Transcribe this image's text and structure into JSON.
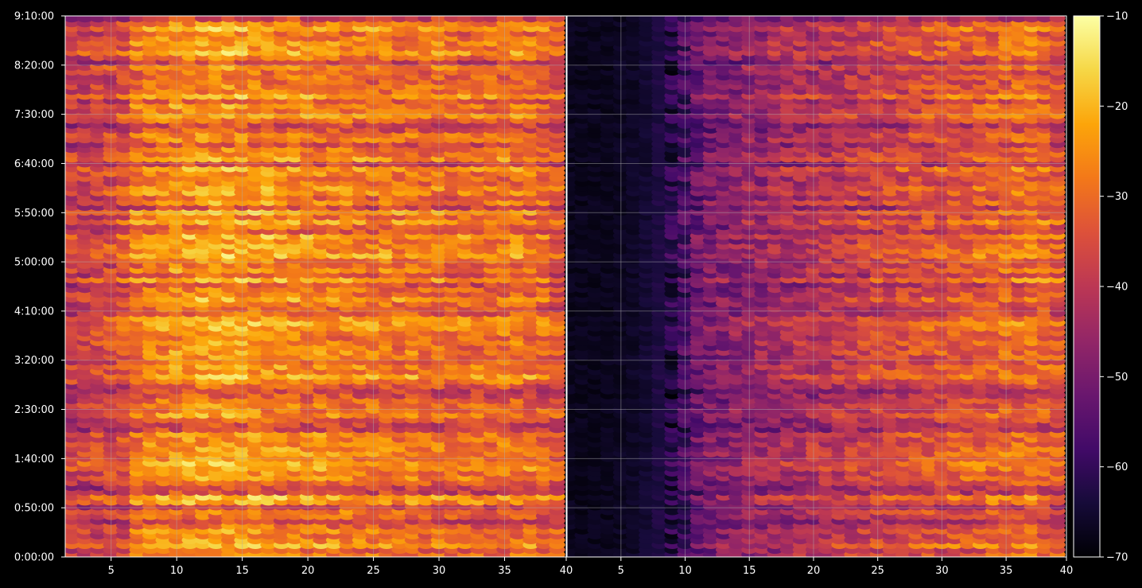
{
  "chart_data": {
    "type": "heatmap",
    "title": "",
    "layout": "two panels side by side sharing the y axis, with a colorbar on the right",
    "panels": [
      {
        "xlim": [
          1.5,
          39.7
        ],
        "x_ticks": [
          5,
          10,
          15,
          20,
          25,
          30,
          35
        ],
        "right_edge_label": "40",
        "intensity": "high (orange/yellow dominant)",
        "column_intensity": [
          0.56,
          0.56,
          0.57,
          0.58,
          0.6,
          0.62,
          0.72,
          0.75,
          0.77,
          0.78,
          0.79,
          0.8,
          0.8,
          0.8,
          0.79,
          0.79,
          0.78,
          0.77,
          0.76,
          0.75,
          0.75,
          0.74,
          0.74,
          0.73,
          0.72,
          0.73,
          0.72,
          0.72,
          0.71,
          0.71,
          0.7,
          0.7,
          0.7,
          0.7,
          0.71,
          0.72,
          0.71,
          0.68,
          0.64
        ]
      },
      {
        "xlim": [
          0.8,
          39.7
        ],
        "x_ticks": [
          5,
          10,
          15,
          20,
          25,
          30,
          35
        ],
        "right_edge_label": "40",
        "intensity": "low on the left (black), purple to orange toward the right",
        "column_intensity": [
          0.02,
          0.02,
          0.02,
          0.02,
          0.03,
          0.04,
          0.06,
          0.09,
          0.14,
          0.22,
          0.32,
          0.36,
          0.38,
          0.4,
          0.42,
          0.44,
          0.46,
          0.48,
          0.49,
          0.5,
          0.52,
          0.53,
          0.55,
          0.56,
          0.58,
          0.59,
          0.6,
          0.61,
          0.62,
          0.63,
          0.64,
          0.65,
          0.66,
          0.67,
          0.68,
          0.69,
          0.7,
          0.68,
          0.64
        ]
      }
    ],
    "y_axis": {
      "range_seconds": [
        0,
        33000
      ],
      "ticks": [
        "0:00:00",
        "0:50:00",
        "1:40:00",
        "2:30:00",
        "3:20:00",
        "4:10:00",
        "5:00:00",
        "5:50:00",
        "6:40:00",
        "7:30:00",
        "8:20:00",
        "9:10:00"
      ],
      "tick_seconds": [
        0,
        3000,
        6000,
        9000,
        12000,
        15000,
        18000,
        20999,
        24000,
        27000,
        30000,
        33000
      ]
    },
    "colorbar": {
      "colormap": "inferno",
      "range": [
        -70,
        -10
      ],
      "ticks": [
        "−70",
        "−60",
        "−50",
        "−40",
        "−30",
        "−20",
        "−10"
      ],
      "tick_values": [
        -70,
        -60,
        -50,
        -40,
        -30,
        -20,
        -10
      ]
    },
    "grid": true,
    "row_count": 112,
    "row_profile": [
      0.74,
      0.62,
      0.95,
      0.78,
      0.66,
      0.78,
      0.6,
      0.37,
      0.6,
      0.7,
      0.37,
      0.9,
      0.98,
      0.37,
      0.35,
      0.6,
      0.83,
      0.76,
      0.91,
      0.98,
      0.77,
      0.84,
      0.82,
      0.76,
      0.71,
      0.79,
      0.35,
      0.36,
      0.5,
      0.8,
      0.69,
      0.68,
      0.61,
      0.44,
      0.35,
      0.51,
      0.76,
      0.98,
      0.78,
      0.81,
      0.64,
      0.71,
      0.78,
      0.7,
      0.81,
      0.66,
      0.79,
      0.9,
      0.94,
      0.87,
      0.55,
      0.54,
      0.66,
      0.89,
      0.65,
      0.68,
      0.44,
      0.97,
      0.52,
      0.79,
      0.61,
      0.71,
      0.96,
      0.84,
      0.85,
      0.76,
      0.95,
      0.53,
      0.61,
      0.94,
      0.64,
      0.93,
      0.36,
      0.81,
      0.59,
      0.81,
      0.85,
      0.66,
      0.68,
      0.76,
      0.93,
      0.36,
      0.9,
      0.73,
      0.68,
      0.44,
      0.69,
      0.72,
      0.44,
      0.35,
      0.65,
      0.88,
      0.68,
      0.8,
      0.51,
      0.98,
      0.64,
      0.71,
      0.6,
      0.64,
      0.57,
      0.8,
      0.35,
      0.69,
      0.94,
      0.78,
      0.83,
      0.74,
      0.64,
      0.96,
      0.7,
      0.35
    ],
    "color_stops": [
      [
        0,
        "#000004"
      ],
      [
        0.1,
        "#160b39"
      ],
      [
        0.2,
        "#420a68"
      ],
      [
        0.3,
        "#6a176e"
      ],
      [
        0.4,
        "#932667"
      ],
      [
        0.5,
        "#bc3754"
      ],
      [
        0.6,
        "#dd513a"
      ],
      [
        0.7,
        "#f37819"
      ],
      [
        0.8,
        "#fca50a"
      ],
      [
        0.9,
        "#f6d746"
      ],
      [
        1,
        "#fcffa4"
      ]
    ],
    "colors": {
      "background": "#000000",
      "foreground": "#ffffff",
      "grid": "#b0b0b0"
    }
  }
}
